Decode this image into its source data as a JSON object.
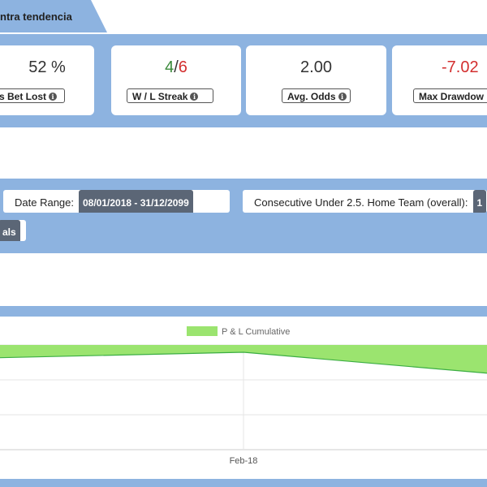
{
  "tab": {
    "label": "ntra tendencia"
  },
  "stats": {
    "bet_lost": {
      "value": "52 %",
      "label": "s Bet Lost"
    },
    "streak": {
      "wins": "4",
      "sep": "/",
      "losses": "6",
      "label": "W / L Streak"
    },
    "avg_odds": {
      "value": "2.00",
      "label": "Avg. Odds"
    },
    "drawdown": {
      "value": "-7.02",
      "label": "Max Drawdow"
    }
  },
  "filters": {
    "date_range": {
      "label": "Date Range:",
      "value": "08/01/2018 - 31/12/2099"
    },
    "consecutive": {
      "label": "Consecutive Under 2.5. Home Team (overall):",
      "value": "1"
    },
    "partial": {
      "value": "als"
    }
  },
  "colors": {
    "band": "#8db3e0",
    "win": "#3a8a3a",
    "loss": "#d32f2f",
    "area_fill": "#9be46f",
    "line": "#3cae43"
  },
  "chart_data": {
    "type": "area",
    "series": [
      {
        "name": "P & L Cumulative",
        "values": [
          2.6,
          3.2,
          0.9
        ]
      }
    ],
    "x": [
      "",
      "Feb-18",
      ""
    ],
    "x_tick_labels": [
      "Feb-18"
    ],
    "ylim": [
      -7.5,
      4
    ],
    "grid": true,
    "legend": "top-center"
  }
}
